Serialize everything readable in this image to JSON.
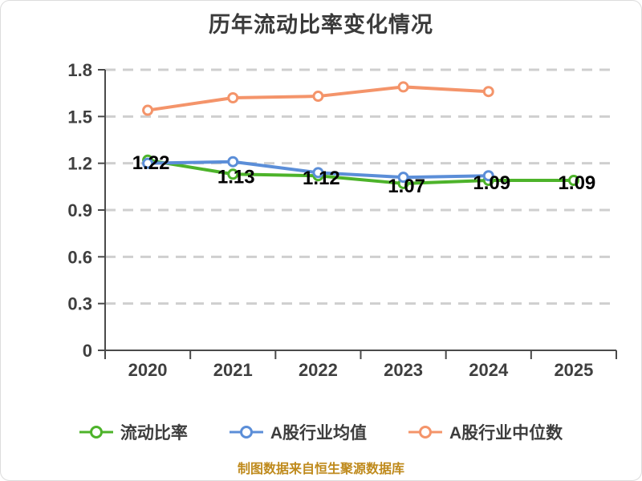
{
  "source_note": "制图数据来自恒生聚源数据库",
  "colors": {
    "background": "#ffffff",
    "title": "#3a3a3a",
    "axis": "#4a4a4a",
    "grid": "#cfcfcf",
    "tick_label": "#3f3f3f",
    "data_label": "#000000",
    "legend_text": "#3d3d3d",
    "source_note": "#bf8a1c"
  },
  "chart_data": {
    "type": "line",
    "title": "历年流动比率变化情况",
    "categories": [
      "2020",
      "2021",
      "2022",
      "2023",
      "2024",
      "2025"
    ],
    "ylim": [
      0,
      1.8
    ],
    "y_ticks": [
      0,
      0.3,
      0.6,
      0.9,
      1.2,
      1.5,
      1.8
    ],
    "y_tick_labels": [
      "0",
      "0.3",
      "0.6",
      "0.9",
      "1.2",
      "1.5",
      "1.8"
    ],
    "grid": "horizontal-dashed",
    "legend_position": "bottom",
    "marker": "circle-white-fill",
    "series": [
      {
        "name": "流动比率",
        "color": "#4db32a",
        "values": [
          1.22,
          1.13,
          1.12,
          1.07,
          1.09,
          1.09
        ],
        "point_labels": [
          "1.22",
          "1.13",
          "1.12",
          "1.07",
          "1.09",
          "1.09"
        ]
      },
      {
        "name": "A股行业均值",
        "color": "#5b8ed8",
        "values": [
          1.2,
          1.21,
          1.14,
          1.11,
          1.12,
          null
        ]
      },
      {
        "name": "A股行业中位数",
        "color": "#f4946a",
        "values": [
          1.54,
          1.62,
          1.63,
          1.69,
          1.66,
          null
        ]
      }
    ]
  }
}
